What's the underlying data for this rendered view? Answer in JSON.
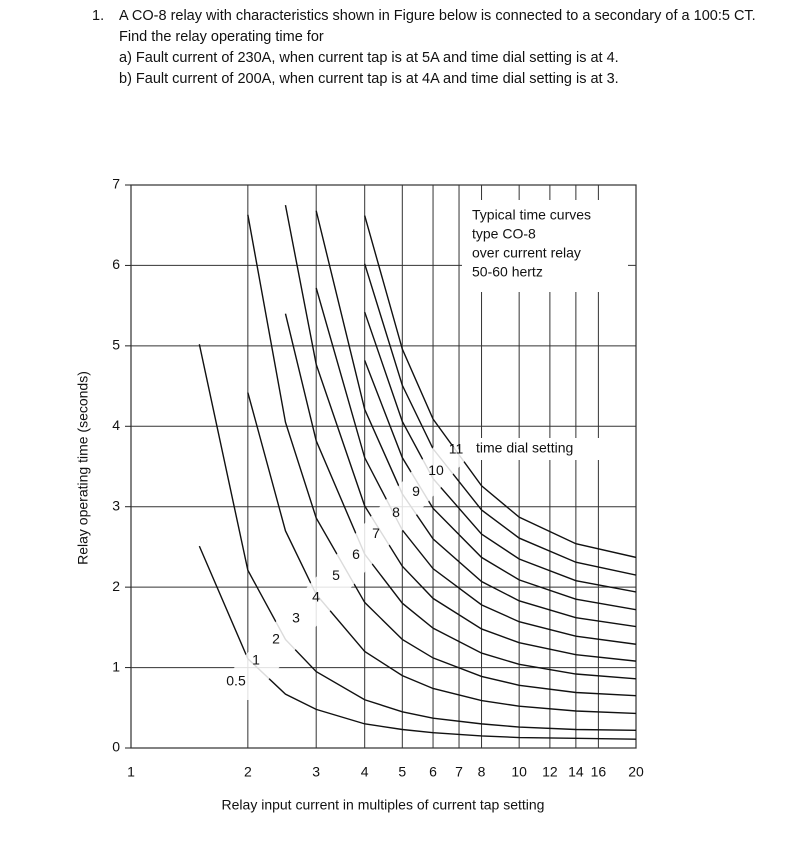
{
  "question": {
    "number": "1.",
    "text": "A CO-8 relay with characteristics shown in Figure below is connected to a secondary of a 100:5 CT. Find the relay operating time for",
    "items": [
      "a) Fault current of 230A, when current tap is at 5A and time dial setting is at 4.",
      "b) Fault current of 200A, when current tap is at 4A and time dial setting is at 3."
    ]
  },
  "chart_data": {
    "type": "line",
    "box_lines": [
      "Typical time curves",
      "type CO-8",
      "over current relay",
      "50-60 hertz"
    ],
    "series_caption": "time dial setting",
    "xlabel": "Relay input current in multiples of current tap setting",
    "ylabel": "Relay operating time (seconds)",
    "x_scale": "log",
    "grid": true,
    "xlim": [
      1,
      20
    ],
    "xticks": [
      1,
      2,
      3,
      4,
      5,
      6,
      7,
      8,
      10,
      12,
      14,
      16,
      20
    ],
    "ylim": [
      0,
      7
    ],
    "yticks": [
      0,
      1,
      2,
      3,
      4,
      5,
      6,
      7
    ],
    "x": [
      1.5,
      2,
      2.5,
      3,
      4,
      5,
      6,
      8,
      10,
      14,
      20
    ],
    "series": [
      {
        "name": "0.5",
        "color": "#111111",
        "values": [
          2.51,
          1.11,
          0.67,
          0.48,
          0.3,
          0.23,
          0.19,
          0.15,
          0.13,
          0.12,
          0.11
        ]
      },
      {
        "name": "1",
        "color": "#111111",
        "values": [
          5.02,
          2.21,
          1.35,
          0.95,
          0.6,
          0.45,
          0.37,
          0.3,
          0.26,
          0.23,
          0.22
        ]
      },
      {
        "name": "2",
        "color": "#111111",
        "values": [
          null,
          4.42,
          2.7,
          1.91,
          1.2,
          0.9,
          0.74,
          0.59,
          0.52,
          0.46,
          0.43
        ]
      },
      {
        "name": "3",
        "color": "#111111",
        "values": [
          null,
          6.63,
          4.05,
          2.86,
          1.81,
          1.35,
          1.12,
          0.89,
          0.78,
          0.69,
          0.65
        ]
      },
      {
        "name": "4",
        "color": "#111111",
        "values": [
          null,
          null,
          5.4,
          3.82,
          2.41,
          1.8,
          1.49,
          1.18,
          1.04,
          0.92,
          0.86
        ]
      },
      {
        "name": "5",
        "color": "#111111",
        "values": [
          null,
          null,
          6.75,
          4.77,
          3.01,
          2.26,
          1.86,
          1.48,
          1.31,
          1.16,
          1.08
        ]
      },
      {
        "name": "6",
        "color": "#111111",
        "values": [
          null,
          null,
          null,
          5.72,
          3.61,
          2.71,
          2.23,
          1.78,
          1.57,
          1.39,
          1.29
        ]
      },
      {
        "name": "7",
        "color": "#111111",
        "values": [
          null,
          null,
          null,
          6.68,
          4.21,
          3.16,
          2.6,
          2.07,
          1.83,
          1.62,
          1.51
        ]
      },
      {
        "name": "8",
        "color": "#111111",
        "values": [
          null,
          null,
          null,
          null,
          4.82,
          3.61,
          2.98,
          2.37,
          2.09,
          1.85,
          1.72
        ]
      },
      {
        "name": "9",
        "color": "#111111",
        "values": [
          null,
          null,
          null,
          null,
          5.42,
          4.06,
          3.35,
          2.66,
          2.35,
          2.08,
          1.94
        ]
      },
      {
        "name": "10",
        "color": "#111111",
        "values": [
          null,
          null,
          null,
          null,
          6.02,
          4.51,
          3.72,
          2.96,
          2.61,
          2.31,
          2.15
        ]
      },
      {
        "name": "11",
        "color": "#111111",
        "values": [
          null,
          null,
          null,
          null,
          6.62,
          4.96,
          4.09,
          3.26,
          2.87,
          2.54,
          2.37
        ]
      }
    ]
  }
}
